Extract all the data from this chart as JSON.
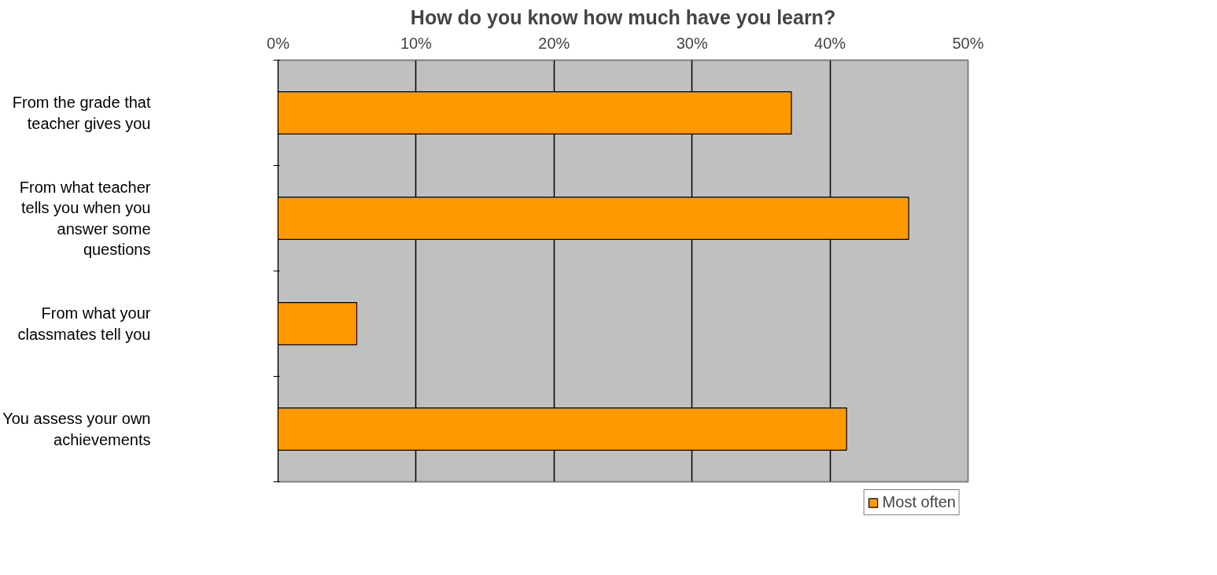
{
  "chart_data": {
    "type": "bar",
    "orientation": "horizontal",
    "title": "How do you know how much have you learn?",
    "categories": [
      "From the grade that teacher gives you",
      "From what teacher tells you when you answer some questions",
      "From what your classmates tell you",
      "You assess your own achievements"
    ],
    "series": [
      {
        "name": "Most often",
        "color": "#ff9900",
        "values": [
          37.2,
          45.7,
          5.7,
          41.2
        ]
      }
    ],
    "xlim": [
      0,
      50
    ],
    "xticks": [
      {
        "value": 0,
        "label": "0%"
      },
      {
        "value": 10,
        "label": "10%"
      },
      {
        "value": 20,
        "label": "20%"
      },
      {
        "value": 30,
        "label": "30%"
      },
      {
        "value": 40,
        "label": "40%"
      },
      {
        "value": 50,
        "label": "50%"
      }
    ],
    "grid": "x",
    "legend": "bottom"
  }
}
